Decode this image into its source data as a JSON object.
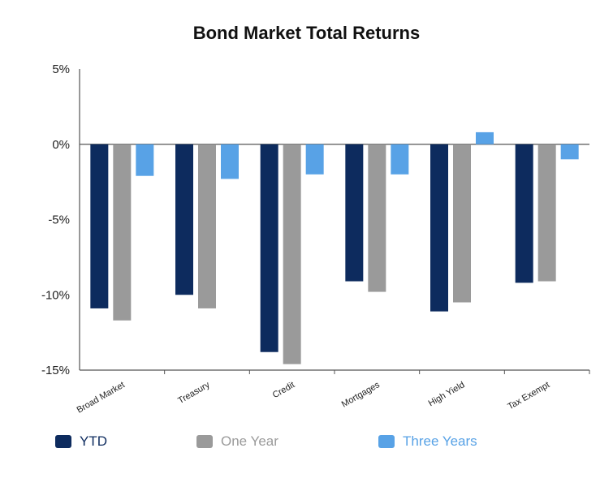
{
  "chart_data": {
    "type": "bar",
    "title": "Bond Market Total Returns",
    "xlabel": "",
    "ylabel": "",
    "ylim": [
      -15,
      5
    ],
    "y_ticks": [
      5,
      0,
      -5,
      -10,
      -15
    ],
    "y_tick_labels": [
      "5%",
      "0%",
      "-5%",
      "-10%",
      "-15%"
    ],
    "categories": [
      "Broad Market",
      "Treasury",
      "Credit",
      "Mortgages",
      "High Yield",
      "Tax Exempt"
    ],
    "series": [
      {
        "name": "YTD",
        "color": "#0d2b5e",
        "values": [
          -10.9,
          -10.0,
          -13.8,
          -9.1,
          -11.1,
          -9.2
        ]
      },
      {
        "name": "One Year",
        "color": "#9a9a9a",
        "values": [
          -11.7,
          -10.9,
          -14.6,
          -9.8,
          -10.5,
          -9.1
        ]
      },
      {
        "name": "Three Years",
        "color": "#58a2e6",
        "values": [
          -2.1,
          -2.3,
          -2.0,
          -2.0,
          0.8,
          -1.0
        ]
      }
    ],
    "legend_position": "bottom",
    "grid": false
  }
}
